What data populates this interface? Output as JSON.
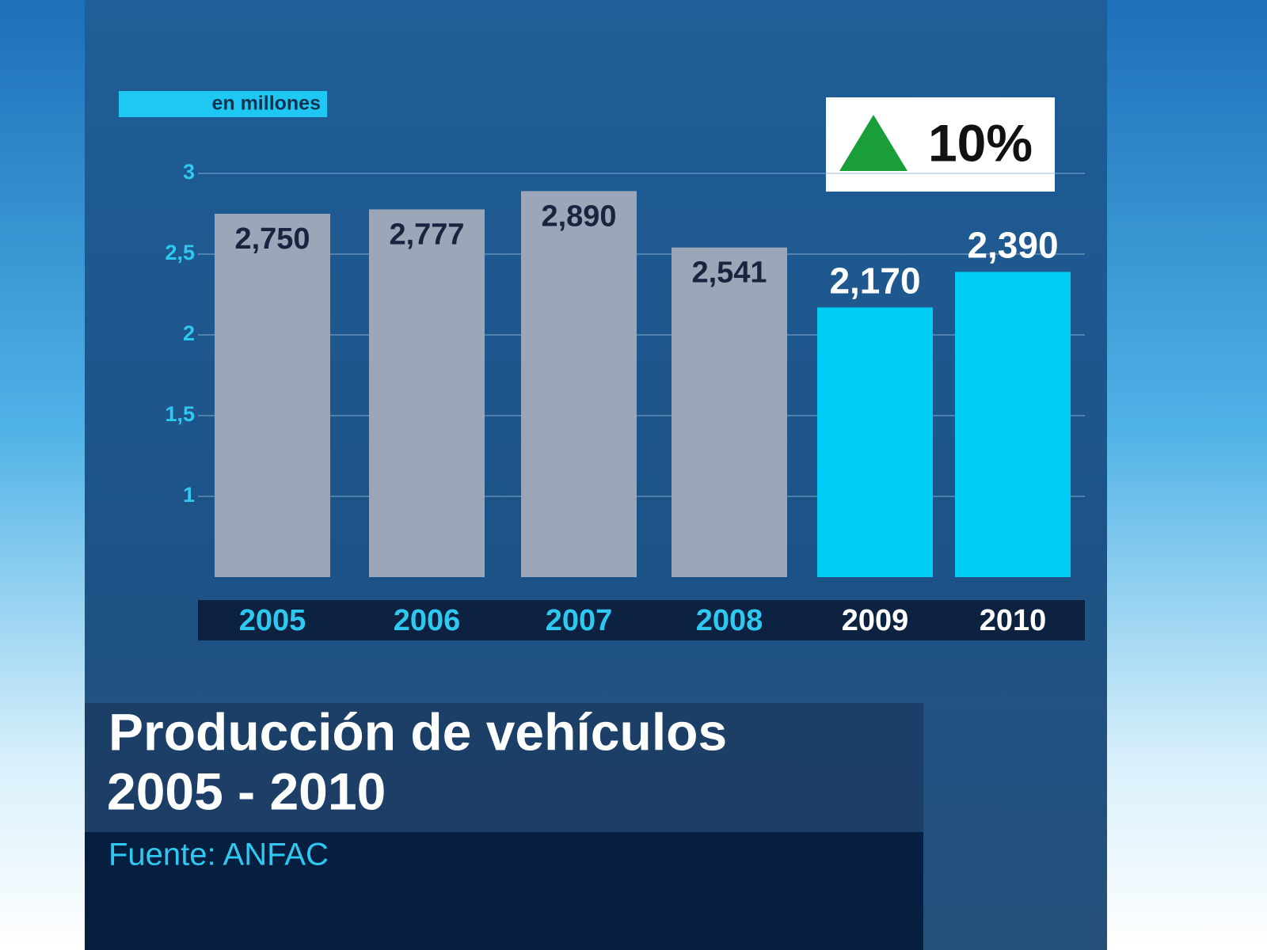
{
  "chart_data": {
    "type": "bar",
    "unit_label": "en millones",
    "title": "Producción de vehículos",
    "subtitle": "2005 - 2010",
    "source": "Fuente: ANFAC",
    "annotation": "10%",
    "categories": [
      "2005",
      "2006",
      "2007",
      "2008",
      "2009",
      "2010"
    ],
    "values": [
      2.75,
      2.777,
      2.89,
      2.541,
      2.17,
      2.39
    ],
    "value_labels": [
      "2,750",
      "2,777",
      "2,890",
      "2,541",
      "2,170",
      "2,390"
    ],
    "colors": [
      "#9ba7b8",
      "#9ba7b8",
      "#9ba7b8",
      "#9ba7b8",
      "#00cdf6",
      "#00cdf6"
    ],
    "label_colors": [
      "#1a2340",
      "#1a2340",
      "#1a2340",
      "#1a2340",
      "#ffffff",
      "#ffffff"
    ],
    "category_label_colors": [
      "#2ec8f0",
      "#2ec8f0",
      "#2ec8f0",
      "#2ec8f0",
      "#ffffff",
      "#ffffff"
    ],
    "ylim": [
      0.5,
      3
    ],
    "yticks": [
      1,
      {
        "value": 1.5,
        "label": "1,5"
      },
      2,
      {
        "value": 2.5,
        "label": "2,5"
      },
      3
    ],
    "grid": true
  }
}
